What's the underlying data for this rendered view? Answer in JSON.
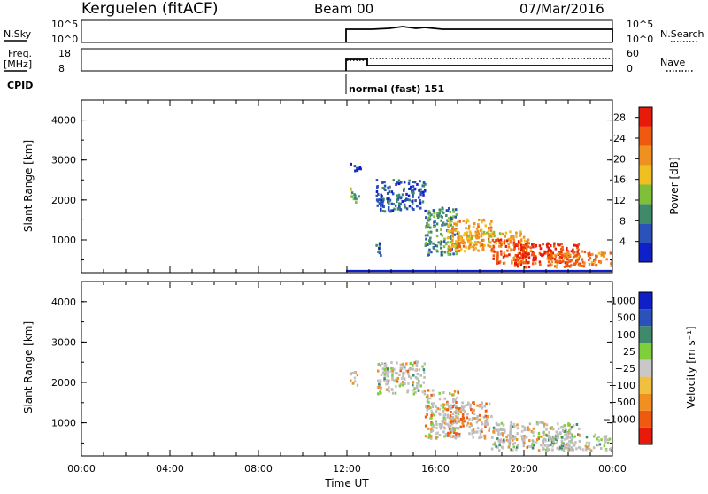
{
  "header": {
    "station": "Kerguelen (fitACF)",
    "beam": "Beam 00",
    "date": "07/Mar/2016"
  },
  "noise_panel": {
    "left_label": "N.Sky",
    "left_ticks": [
      "10^5",
      "10^0"
    ],
    "right_label": "N.Search",
    "right_ticks": [
      "10^5",
      "10^0"
    ]
  },
  "freq_panel": {
    "left_label_line1": "Freq.",
    "left_label_line2": "[MHz]",
    "left_ticks": [
      "18",
      "8"
    ],
    "right_label": "Nave",
    "right_ticks": [
      "60",
      "0"
    ],
    "cpid_label": "CPID",
    "cpid_value": "normal (fast) 151"
  },
  "colors": {
    "axis": "#000000",
    "power_scale": [
      "#1020c8",
      "#2a52b8",
      "#3e8a6a",
      "#7fbf3a",
      "#f0c020",
      "#f09020",
      "#f05a10",
      "#e81a0a"
    ],
    "velocity_scale": [
      "#e81a0a",
      "#f05a10",
      "#f09020",
      "#f2c040",
      "#c8c8c8",
      "#7fcf3a",
      "#3e8a6a",
      "#2a52b8",
      "#1020c8"
    ],
    "ground_scatter": "#bdbdbd"
  },
  "chart_data": [
    {
      "type": "heatmap",
      "panel": "power",
      "xlabel": "Time UT",
      "ylabel": "Slant Range [km]",
      "x_ticks": [
        "00:00",
        "04:00",
        "08:00",
        "12:00",
        "16:00",
        "20:00",
        "00:00"
      ],
      "y_ticks": [
        "1000",
        "2000",
        "3000",
        "4000"
      ],
      "ylim": [
        180,
        4500
      ],
      "colorbar_label": "Power [dB]",
      "colorbar_ticks": [
        "4",
        "8",
        "12",
        "16",
        "20",
        "24",
        "28"
      ],
      "colorbar_range": [
        0,
        30
      ],
      "data_start_hour": 12.0,
      "echo_regions": [
        {
          "t": [
            12.1,
            12.5
          ],
          "r": [
            1900,
            2300
          ],
          "level": 12
        },
        {
          "t": [
            12.1,
            12.6
          ],
          "r": [
            2700,
            2900
          ],
          "level": 4
        },
        {
          "t": [
            13.3,
            15.5
          ],
          "r": [
            1700,
            2500
          ],
          "level": 6
        },
        {
          "t": [
            13.2,
            13.5
          ],
          "r": [
            600,
            900
          ],
          "level": 6
        },
        {
          "t": [
            15.5,
            17.0
          ],
          "r": [
            600,
            1800
          ],
          "level": 10
        },
        {
          "t": [
            16.5,
            18.5
          ],
          "r": [
            700,
            1500
          ],
          "level": 20
        },
        {
          "t": [
            17.0,
            20.0
          ],
          "r": [
            900,
            1200
          ],
          "level": 18
        },
        {
          "t": [
            18.5,
            20.5
          ],
          "r": [
            400,
            1000
          ],
          "level": 24
        },
        {
          "t": [
            19.5,
            22.5
          ],
          "r": [
            300,
            900
          ],
          "level": 28
        },
        {
          "t": [
            21.0,
            24.0
          ],
          "r": [
            300,
            700
          ],
          "level": 22
        }
      ]
    },
    {
      "type": "heatmap",
      "panel": "velocity",
      "xlabel": "Time UT",
      "ylabel": "Slant Range [km]",
      "x_ticks": [
        "00:00",
        "04:00",
        "08:00",
        "12:00",
        "16:00",
        "20:00",
        "00:00"
      ],
      "y_ticks": [
        "1000",
        "2000",
        "3000",
        "4000"
      ],
      "ylim": [
        180,
        4500
      ],
      "colorbar_label": "Velocity [m s⁻¹]",
      "colorbar_ticks": [
        "1000",
        "500",
        "100",
        "25",
        "−25",
        "−100",
        "−500",
        "−1000"
      ],
      "echo_regions": [
        {
          "t": [
            12.1,
            12.5
          ],
          "r": [
            1900,
            2300
          ],
          "v": 0
        },
        {
          "t": [
            13.3,
            15.5
          ],
          "r": [
            1700,
            2500
          ],
          "v": 10
        },
        {
          "t": [
            15.5,
            17.0
          ],
          "r": [
            600,
            1800
          ],
          "v": -50
        },
        {
          "t": [
            16.5,
            18.5
          ],
          "r": [
            600,
            1500
          ],
          "v": -150
        },
        {
          "t": [
            18.5,
            22.5
          ],
          "r": [
            300,
            1000
          ],
          "v": 0
        },
        {
          "t": [
            21.0,
            24.0
          ],
          "r": [
            300,
            700
          ],
          "v": 50
        }
      ]
    }
  ],
  "axis_labels": {
    "time": "Time UT",
    "slant_range": "Slant Range [km]",
    "power": "Power [dB]",
    "velocity": "Velocity [m s⁻¹]"
  }
}
